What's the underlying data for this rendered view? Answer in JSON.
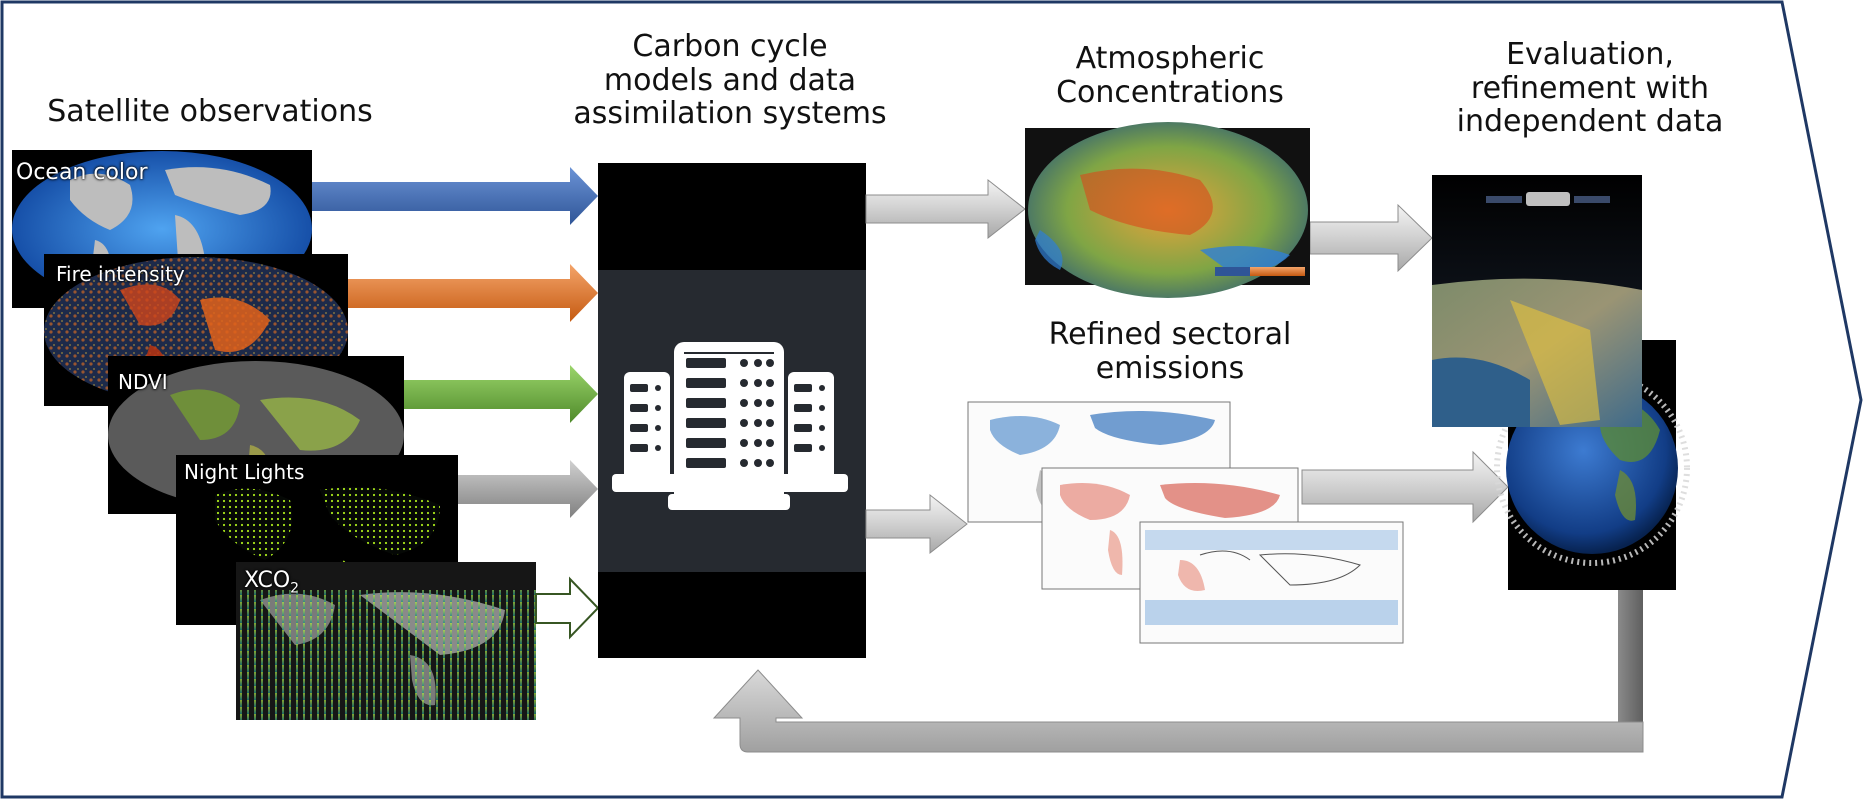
{
  "headings": {
    "satellite": "Satellite observations",
    "models": [
      "Carbon cycle",
      "models and data",
      "assimilation systems"
    ],
    "atmos": [
      "Atmospheric",
      "Concentrations"
    ],
    "eval": [
      "Evaluation,",
      "refinement with",
      "independent data"
    ],
    "emissions": [
      "Refined sectoral",
      "emissions"
    ]
  },
  "satellite_layers": [
    {
      "label": "Ocean color",
      "arrow_color": "#4472c4"
    },
    {
      "label": "Fire intensity",
      "arrow_color": "#ed7d31"
    },
    {
      "label": "NDVI",
      "arrow_color": "#70ad47"
    },
    {
      "label": "Night Lights",
      "arrow_color": "#a6a6a6"
    },
    {
      "label": "XCO",
      "sub": "2",
      "arrow_color": "#ffffff"
    }
  ],
  "colors": {
    "frame": "#1f3864",
    "server_box": "#000000",
    "server_panel": "#262a30",
    "flow_arrow": "#c9c9c9",
    "feedback_arrow": "#bfbfbf"
  },
  "icons": {
    "server": "server-stack-icon",
    "satellite": "satellite-icon",
    "globe": "globe-icon"
  }
}
